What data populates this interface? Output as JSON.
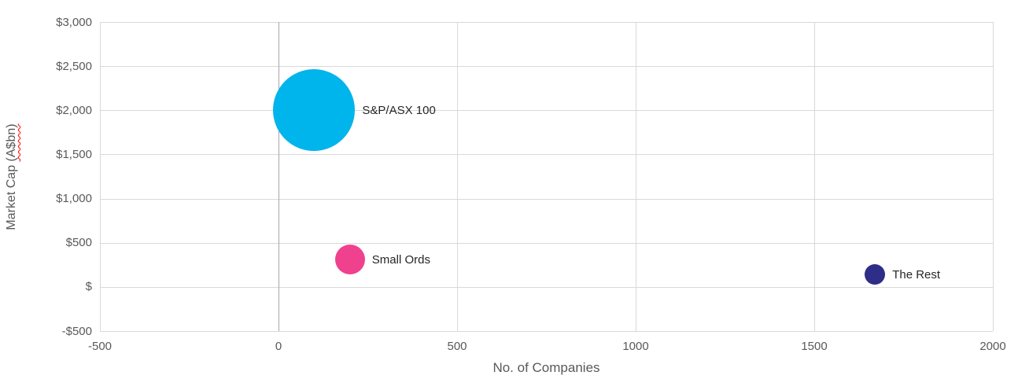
{
  "chart_data": {
    "type": "scatter",
    "title": "",
    "xlabel": "No. of Companies",
    "ylabel": "Market Cap (A$bn)",
    "ylabel_part_plain": "Market Cap ",
    "ylabel_part_squiggle": "(A$bn)",
    "xlim": [
      -500,
      2000
    ],
    "ylim": [
      -500,
      3000
    ],
    "grid": true,
    "x_ticks": [
      {
        "value": -500,
        "label": "-500"
      },
      {
        "value": 0,
        "label": "0"
      },
      {
        "value": 500,
        "label": "500"
      },
      {
        "value": 1000,
        "label": "1000"
      },
      {
        "value": 1500,
        "label": "1500"
      },
      {
        "value": 2000,
        "label": "2000"
      }
    ],
    "y_ticks": [
      {
        "value": 3000,
        "label": "$3,000"
      },
      {
        "value": 2500,
        "label": "$2,500"
      },
      {
        "value": 2000,
        "label": "$2,000"
      },
      {
        "value": 1500,
        "label": "$1,500"
      },
      {
        "value": 1000,
        "label": "$1,000"
      },
      {
        "value": 500,
        "label": "$500"
      },
      {
        "value": 0,
        "label": "$"
      },
      {
        "value": -500,
        "label": "-$500"
      }
    ],
    "series": [
      {
        "name": "S&P/ASX 100",
        "x": 100,
        "y": 2000,
        "radius_px": 52,
        "color": "#00B4EC"
      },
      {
        "name": "Small Ords",
        "x": 200,
        "y": 310,
        "radius_px": 19,
        "color": "#F0418F"
      },
      {
        "name": "The Rest",
        "x": 1670,
        "y": 140,
        "radius_px": 13,
        "color": "#2E2D87"
      }
    ],
    "colors": {
      "gridline": "#d9d9d9",
      "zero_axis_line": "#a6a6a6",
      "tick_label": "#595959",
      "data_label": "#262626",
      "squiggle": "#ff0000"
    }
  }
}
